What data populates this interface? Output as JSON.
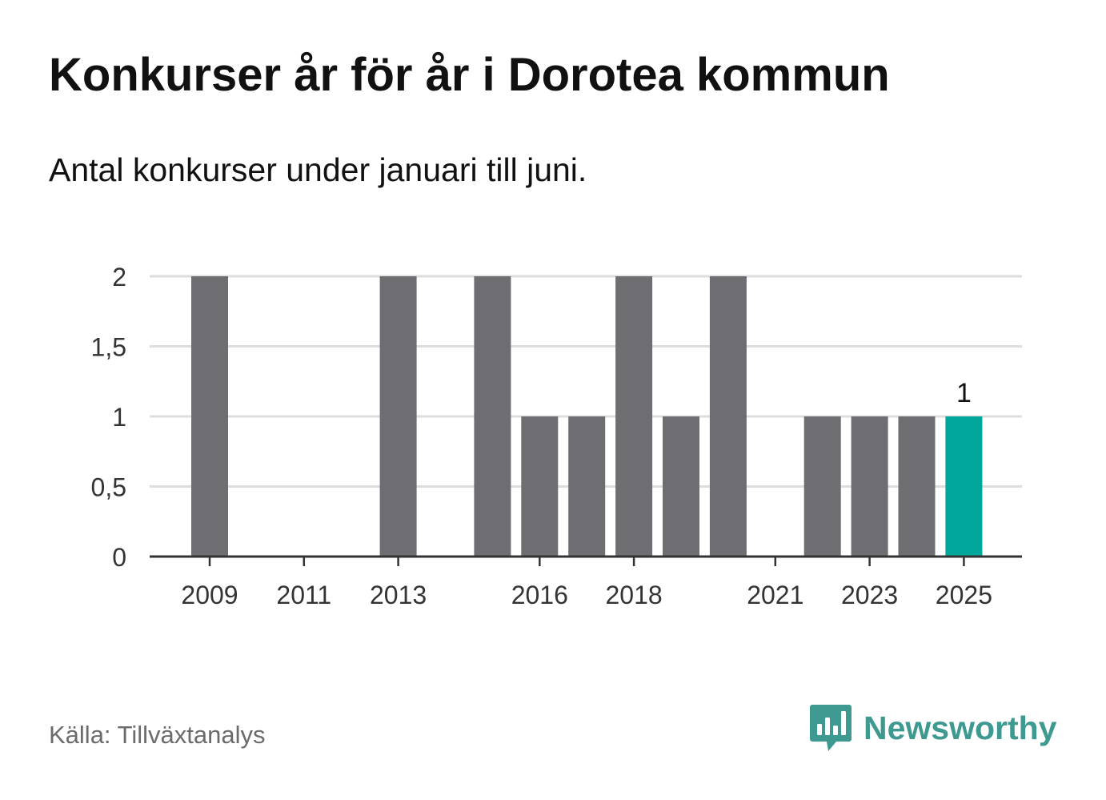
{
  "title": "Konkurser år för år i Dorotea kommun",
  "subtitle": "Antal konkurser under januari till juni.",
  "source": "Källa: Tillväxtanalys",
  "brand": {
    "name": "Newsworthy",
    "icon": "newsworthy-logo-icon"
  },
  "colors": {
    "bar": "#6e6d72",
    "highlight": "#00a69a",
    "grid": "#dddddd",
    "axis": "#333333",
    "brand": "#3e9a90"
  },
  "chart_data": {
    "type": "bar",
    "categories": [
      "2009",
      "2010",
      "2011",
      "2012",
      "2013",
      "2014",
      "2015",
      "2016",
      "2017",
      "2018",
      "2019",
      "2020",
      "2021",
      "2022",
      "2023",
      "2024",
      "2025"
    ],
    "values": [
      2,
      0,
      0,
      0,
      2,
      0,
      2,
      1,
      1,
      2,
      1,
      2,
      0,
      1,
      1,
      1,
      1
    ],
    "highlight_category": "2025",
    "xtick_labels": [
      "2009",
      "2011",
      "2013",
      "2016",
      "2018",
      "2021",
      "2023",
      "2025"
    ],
    "yticks": [
      0,
      0.5,
      1,
      1.5,
      2
    ],
    "ytick_labels": [
      "0",
      "0,5",
      "1",
      "1,5",
      "2"
    ],
    "ylim": [
      0,
      2
    ],
    "data_labels": [
      {
        "category": "2025",
        "text": "1"
      }
    ],
    "grid": true,
    "xlabel": "",
    "ylabel": ""
  }
}
